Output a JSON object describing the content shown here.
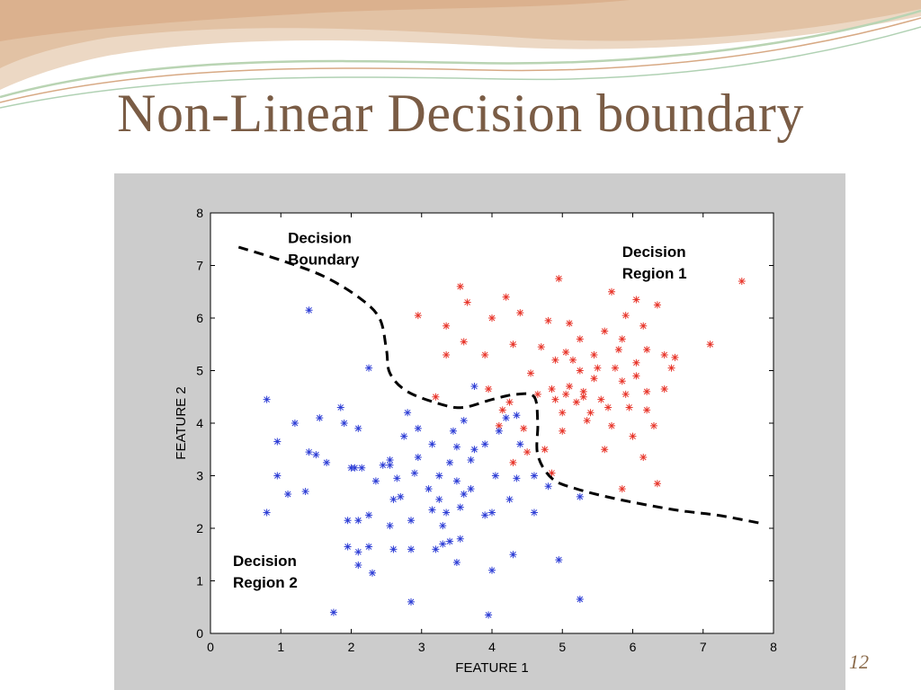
{
  "slide": {
    "title": "Non-Linear Decision boundary",
    "slide_number": "12"
  },
  "colors": {
    "title": "#7a5c45",
    "class_red": "#e8362b",
    "class_blue": "#2f3fd6",
    "figure_bg": "#cccccc"
  },
  "chart_data": {
    "type": "scatter",
    "title": "",
    "xlabel": "FEATURE 1",
    "ylabel": "FEATURE 2",
    "xlim": [
      0,
      8
    ],
    "ylim": [
      0,
      8
    ],
    "xticks": [
      "0",
      "1",
      "2",
      "3",
      "4",
      "5",
      "6",
      "7",
      "8"
    ],
    "yticks": [
      "0",
      "1",
      "2",
      "3",
      "4",
      "5",
      "6",
      "7",
      "8"
    ],
    "annotations": {
      "boundary_l1": "Decision",
      "boundary_l2": "Boundary",
      "region1_l1": "Decision",
      "region1_l2": "Region 1",
      "region2_l1": "Decision",
      "region2_l2": "Region 2"
    },
    "decision_boundary": [
      [
        0.4,
        7.35
      ],
      [
        1.0,
        7.1
      ],
      [
        1.6,
        6.8
      ],
      [
        2.1,
        6.4
      ],
      [
        2.4,
        6.0
      ],
      [
        2.5,
        5.4
      ],
      [
        2.55,
        4.95
      ],
      [
        2.8,
        4.6
      ],
      [
        3.3,
        4.35
      ],
      [
        3.6,
        4.3
      ],
      [
        4.0,
        4.45
      ],
      [
        4.35,
        4.55
      ],
      [
        4.6,
        4.5
      ],
      [
        4.65,
        4.0
      ],
      [
        4.65,
        3.4
      ],
      [
        4.85,
        2.95
      ],
      [
        5.2,
        2.75
      ],
      [
        5.8,
        2.55
      ],
      [
        6.6,
        2.35
      ],
      [
        7.2,
        2.25
      ],
      [
        7.8,
        2.1
      ]
    ],
    "series": [
      {
        "color": "red",
        "points": [
          [
            3.55,
            6.6
          ],
          [
            4.2,
            6.4
          ],
          [
            4.95,
            6.75
          ],
          [
            5.7,
            6.5
          ],
          [
            6.05,
            6.35
          ],
          [
            6.35,
            6.25
          ],
          [
            7.55,
            6.7
          ],
          [
            2.95,
            6.05
          ],
          [
            3.35,
            5.85
          ],
          [
            3.65,
            6.3
          ],
          [
            4.0,
            6.0
          ],
          [
            4.4,
            6.1
          ],
          [
            4.8,
            5.95
          ],
          [
            5.1,
            5.9
          ],
          [
            5.6,
            5.75
          ],
          [
            5.9,
            6.05
          ],
          [
            6.15,
            5.85
          ],
          [
            3.35,
            5.3
          ],
          [
            3.6,
            5.55
          ],
          [
            3.9,
            5.3
          ],
          [
            4.3,
            5.5
          ],
          [
            4.7,
            5.45
          ],
          [
            5.05,
            5.35
          ],
          [
            5.25,
            5.6
          ],
          [
            5.45,
            5.3
          ],
          [
            5.85,
            5.6
          ],
          [
            6.2,
            5.4
          ],
          [
            6.45,
            5.3
          ],
          [
            7.1,
            5.5
          ],
          [
            6.55,
            5.05
          ],
          [
            3.2,
            4.5
          ],
          [
            3.95,
            4.65
          ],
          [
            4.25,
            4.4
          ],
          [
            4.65,
            4.55
          ],
          [
            4.85,
            4.65
          ],
          [
            5.1,
            4.7
          ],
          [
            5.3,
            4.6
          ],
          [
            5.55,
            4.45
          ],
          [
            5.9,
            4.55
          ],
          [
            6.2,
            4.6
          ],
          [
            4.45,
            3.9
          ],
          [
            4.75,
            3.5
          ],
          [
            5.0,
            4.2
          ],
          [
            5.35,
            4.05
          ],
          [
            5.7,
            3.95
          ],
          [
            6.0,
            3.75
          ],
          [
            6.3,
            3.95
          ],
          [
            6.15,
            3.35
          ],
          [
            6.35,
            2.85
          ],
          [
            5.85,
            2.75
          ],
          [
            4.85,
            3.05
          ],
          [
            4.15,
            4.25
          ],
          [
            4.55,
            4.95
          ],
          [
            5.25,
            5.0
          ],
          [
            5.5,
            5.05
          ],
          [
            5.75,
            5.05
          ],
          [
            6.05,
            5.15
          ],
          [
            6.45,
            4.65
          ],
          [
            5.65,
            4.3
          ],
          [
            5.95,
            4.3
          ],
          [
            5.85,
            4.8
          ],
          [
            4.9,
            5.2
          ],
          [
            5.15,
            5.2
          ],
          [
            6.6,
            5.25
          ],
          [
            4.9,
            4.45
          ],
          [
            5.6,
            3.5
          ],
          [
            5.0,
            3.85
          ],
          [
            4.5,
            3.45
          ],
          [
            4.1,
            3.95
          ],
          [
            4.3,
            3.25
          ],
          [
            5.2,
            4.4
          ],
          [
            5.4,
            4.2
          ],
          [
            6.2,
            4.25
          ],
          [
            5.45,
            4.85
          ],
          [
            6.05,
            4.9
          ],
          [
            5.3,
            4.5
          ],
          [
            5.05,
            4.55
          ],
          [
            5.8,
            5.4
          ]
        ]
      },
      {
        "color": "blue",
        "points": [
          [
            1.4,
            6.15
          ],
          [
            2.25,
            5.05
          ],
          [
            0.8,
            4.45
          ],
          [
            1.2,
            4.0
          ],
          [
            1.55,
            4.1
          ],
          [
            1.85,
            4.3
          ],
          [
            1.9,
            4.0
          ],
          [
            2.1,
            3.9
          ],
          [
            0.95,
            3.65
          ],
          [
            1.4,
            3.45
          ],
          [
            1.5,
            3.4
          ],
          [
            1.65,
            3.25
          ],
          [
            2.05,
            3.15
          ],
          [
            2.15,
            3.15
          ],
          [
            2.45,
            3.2
          ],
          [
            2.55,
            3.3
          ],
          [
            0.95,
            3.0
          ],
          [
            1.1,
            2.65
          ],
          [
            1.35,
            2.7
          ],
          [
            0.8,
            2.3
          ],
          [
            1.95,
            2.15
          ],
          [
            2.1,
            2.15
          ],
          [
            2.25,
            2.25
          ],
          [
            2.55,
            2.05
          ],
          [
            2.85,
            2.15
          ],
          [
            1.95,
            1.65
          ],
          [
            2.1,
            1.55
          ],
          [
            2.25,
            1.65
          ],
          [
            2.1,
            1.3
          ],
          [
            2.3,
            1.15
          ],
          [
            2.6,
            1.6
          ],
          [
            2.85,
            1.6
          ],
          [
            1.75,
            0.4
          ],
          [
            2.85,
            0.6
          ],
          [
            2.75,
            3.75
          ],
          [
            2.95,
            3.9
          ],
          [
            3.15,
            3.6
          ],
          [
            3.45,
            3.85
          ],
          [
            3.6,
            4.05
          ],
          [
            3.5,
            3.55
          ],
          [
            3.7,
            3.3
          ],
          [
            3.9,
            3.6
          ],
          [
            4.1,
            3.85
          ],
          [
            4.2,
            4.1
          ],
          [
            4.35,
            4.15
          ],
          [
            3.25,
            3.0
          ],
          [
            3.4,
            3.25
          ],
          [
            3.1,
            2.75
          ],
          [
            2.9,
            3.05
          ],
          [
            2.65,
            2.95
          ],
          [
            2.7,
            2.6
          ],
          [
            2.6,
            2.55
          ],
          [
            3.25,
            2.55
          ],
          [
            3.5,
            2.9
          ],
          [
            3.6,
            2.65
          ],
          [
            3.55,
            2.4
          ],
          [
            3.9,
            2.25
          ],
          [
            4.0,
            2.3
          ],
          [
            3.3,
            2.05
          ],
          [
            3.4,
            1.75
          ],
          [
            3.55,
            1.8
          ],
          [
            3.2,
            1.6
          ],
          [
            3.3,
            1.7
          ],
          [
            3.5,
            1.35
          ],
          [
            4.0,
            1.2
          ],
          [
            4.3,
            1.5
          ],
          [
            3.95,
            0.35
          ],
          [
            4.95,
            1.4
          ],
          [
            5.25,
            0.65
          ],
          [
            4.25,
            2.55
          ],
          [
            4.6,
            2.3
          ],
          [
            4.8,
            2.8
          ],
          [
            5.25,
            2.6
          ],
          [
            4.35,
            2.95
          ],
          [
            4.6,
            3.0
          ],
          [
            4.4,
            3.6
          ],
          [
            2.0,
            3.15
          ],
          [
            2.35,
            2.9
          ],
          [
            2.55,
            3.2
          ],
          [
            3.75,
            4.7
          ],
          [
            4.05,
            3.0
          ],
          [
            3.15,
            2.35
          ],
          [
            3.35,
            2.3
          ],
          [
            2.8,
            4.2
          ],
          [
            2.95,
            3.35
          ],
          [
            3.7,
            2.75
          ],
          [
            3.75,
            3.5
          ]
        ]
      }
    ]
  }
}
